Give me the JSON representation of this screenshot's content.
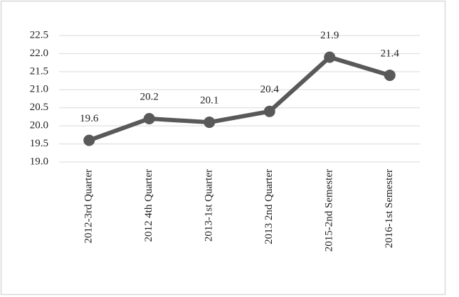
{
  "chart_data": {
    "type": "line",
    "categories": [
      "2012-3rd Quarter",
      "2012 4th Quarter",
      "2013-1st Quarter",
      "2013 2nd Quarter",
      "2015-2nd Semester",
      "2016-1st Semester"
    ],
    "values": [
      19.6,
      20.2,
      20.1,
      20.4,
      21.9,
      21.4
    ],
    "color": "#595959",
    "ylim": [
      19,
      22.5
    ],
    "yticks": [
      {
        "value": 19,
        "label": "19.0"
      },
      19.5,
      {
        "value": 20,
        "label": "20.0"
      },
      20.5,
      {
        "value": 21,
        "label": "21.0"
      },
      21.5,
      {
        "value": 22,
        "label": "22.0"
      },
      22.5
    ],
    "grid": true
  }
}
